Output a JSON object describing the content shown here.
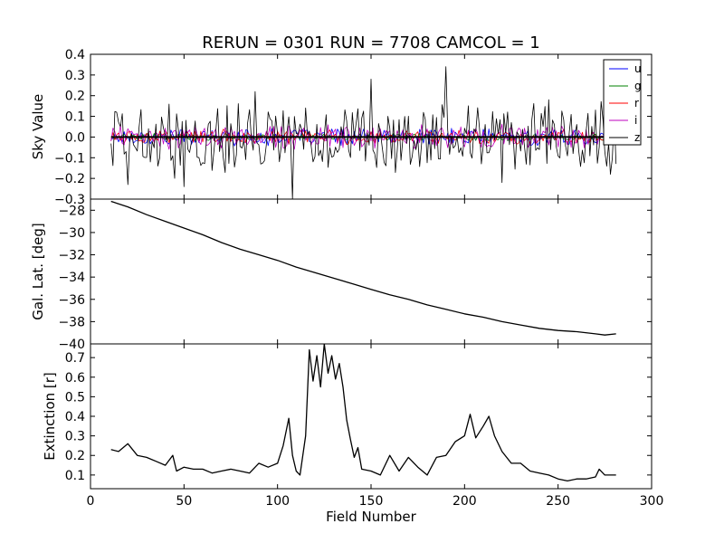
{
  "chart_data": {
    "type": "line",
    "title": "RERUN = 0301 RUN = 7708 CAMCOL = 1",
    "xlabel": "Field Number",
    "xlim": [
      0,
      300
    ],
    "xticks": [
      "0",
      "50",
      "100",
      "150",
      "200",
      "250",
      "300"
    ],
    "xtick_values": [
      0,
      50,
      100,
      150,
      200,
      250,
      300
    ],
    "panels": [
      {
        "id": "sky",
        "ylabel": "Sky Value",
        "ylim": [
          -0.3,
          0.4
        ],
        "yticks": [
          "−0.3",
          "−0.2",
          "−0.1",
          "0.0",
          "0.1",
          "0.2",
          "0.3",
          "0.4"
        ],
        "ytick_values": [
          -0.3,
          -0.2,
          -0.1,
          0.0,
          0.1,
          0.2,
          0.3,
          0.4
        ],
        "legend": {
          "placement": "top-right",
          "entries": [
            {
              "label": "u",
              "color": "#0000ff"
            },
            {
              "label": "g",
              "color": "#008000"
            },
            {
              "label": "r",
              "color": "#ff0000"
            },
            {
              "label": "i",
              "color": "#bf00bf"
            },
            {
              "label": "z",
              "color": "#000000"
            }
          ]
        },
        "series": [
          {
            "name": "u",
            "color": "#0000ff",
            "x_start": 11,
            "x_end": 281,
            "amplitude": 0.035
          },
          {
            "name": "g",
            "color": "#008000",
            "x_start": 11,
            "x_end": 281,
            "amplitude": 0.015
          },
          {
            "name": "r",
            "color": "#ff0000",
            "x_start": 11,
            "x_end": 281,
            "amplitude": 0.03
          },
          {
            "name": "i",
            "color": "#bf00bf",
            "x_start": 11,
            "x_end": 281,
            "amplitude": 0.05
          },
          {
            "name": "z",
            "color": "#000000",
            "x_start": 11,
            "x_end": 281,
            "amplitude": 0.14,
            "spikes": [
              [
                14,
                0.12
              ],
              [
                20,
                -0.23
              ],
              [
                45,
                -0.2
              ],
              [
                50,
                -0.24
              ],
              [
                88,
                0.22
              ],
              [
                108,
                -0.3
              ],
              [
                150,
                0.28
              ],
              [
                190,
                0.34
              ],
              [
                220,
                -0.22
              ],
              [
                278,
                -0.18
              ],
              [
                281,
                -0.13
              ]
            ]
          }
        ]
      },
      {
        "id": "lat",
        "ylabel": "Gal. Lat. [deg]",
        "ylim": [
          -40,
          -27
        ],
        "yticks": [
          "−28",
          "−30",
          "−32",
          "−34",
          "−36",
          "−38",
          "−40"
        ],
        "ytick_values": [
          -28,
          -30,
          -32,
          -34,
          -36,
          -38,
          -40
        ],
        "series": [
          {
            "name": "Gal. Lat.",
            "color": "#000000",
            "points": [
              [
                11,
                -27.2
              ],
              [
                20,
                -27.7
              ],
              [
                30,
                -28.4
              ],
              [
                40,
                -29.0
              ],
              [
                50,
                -29.6
              ],
              [
                60,
                -30.2
              ],
              [
                70,
                -30.9
              ],
              [
                80,
                -31.5
              ],
              [
                90,
                -32.0
              ],
              [
                100,
                -32.5
              ],
              [
                110,
                -33.1
              ],
              [
                120,
                -33.6
              ],
              [
                130,
                -34.1
              ],
              [
                140,
                -34.6
              ],
              [
                150,
                -35.1
              ],
              [
                160,
                -35.6
              ],
              [
                170,
                -36.0
              ],
              [
                180,
                -36.5
              ],
              [
                190,
                -36.9
              ],
              [
                200,
                -37.3
              ],
              [
                210,
                -37.6
              ],
              [
                220,
                -38.0
              ],
              [
                230,
                -38.3
              ],
              [
                240,
                -38.6
              ],
              [
                250,
                -38.8
              ],
              [
                260,
                -38.9
              ],
              [
                270,
                -39.1
              ],
              [
                275,
                -39.2
              ],
              [
                281,
                -39.1
              ]
            ]
          }
        ]
      },
      {
        "id": "ext",
        "ylabel": "Extinction [r]",
        "ylim": [
          0.03,
          0.77
        ],
        "yticks": [
          "0.1",
          "0.2",
          "0.3",
          "0.4",
          "0.5",
          "0.6",
          "0.7"
        ],
        "ytick_values": [
          0.1,
          0.2,
          0.3,
          0.4,
          0.5,
          0.6,
          0.7
        ],
        "series": [
          {
            "name": "Extinction [r]",
            "color": "#000000",
            "points": [
              [
                11,
                0.23
              ],
              [
                15,
                0.22
              ],
              [
                20,
                0.26
              ],
              [
                25,
                0.2
              ],
              [
                30,
                0.19
              ],
              [
                35,
                0.17
              ],
              [
                40,
                0.15
              ],
              [
                44,
                0.2
              ],
              [
                46,
                0.12
              ],
              [
                50,
                0.14
              ],
              [
                55,
                0.13
              ],
              [
                60,
                0.13
              ],
              [
                65,
                0.11
              ],
              [
                70,
                0.12
              ],
              [
                75,
                0.13
              ],
              [
                80,
                0.12
              ],
              [
                85,
                0.11
              ],
              [
                90,
                0.16
              ],
              [
                95,
                0.14
              ],
              [
                100,
                0.16
              ],
              [
                103,
                0.25
              ],
              [
                106,
                0.39
              ],
              [
                108,
                0.2
              ],
              [
                110,
                0.12
              ],
              [
                112,
                0.1
              ],
              [
                115,
                0.3
              ],
              [
                117,
                0.74
              ],
              [
                119,
                0.58
              ],
              [
                121,
                0.71
              ],
              [
                123,
                0.55
              ],
              [
                125,
                0.77
              ],
              [
                127,
                0.62
              ],
              [
                129,
                0.71
              ],
              [
                131,
                0.59
              ],
              [
                133,
                0.67
              ],
              [
                135,
                0.55
              ],
              [
                137,
                0.38
              ],
              [
                139,
                0.28
              ],
              [
                141,
                0.19
              ],
              [
                143,
                0.24
              ],
              [
                145,
                0.13
              ],
              [
                150,
                0.12
              ],
              [
                155,
                0.1
              ],
              [
                160,
                0.2
              ],
              [
                165,
                0.12
              ],
              [
                170,
                0.19
              ],
              [
                175,
                0.14
              ],
              [
                180,
                0.1
              ],
              [
                185,
                0.19
              ],
              [
                190,
                0.2
              ],
              [
                195,
                0.27
              ],
              [
                200,
                0.3
              ],
              [
                203,
                0.41
              ],
              [
                206,
                0.29
              ],
              [
                210,
                0.35
              ],
              [
                213,
                0.4
              ],
              [
                216,
                0.3
              ],
              [
                220,
                0.22
              ],
              [
                225,
                0.16
              ],
              [
                230,
                0.16
              ],
              [
                235,
                0.12
              ],
              [
                240,
                0.11
              ],
              [
                245,
                0.1
              ],
              [
                250,
                0.08
              ],
              [
                255,
                0.07
              ],
              [
                260,
                0.08
              ],
              [
                265,
                0.08
              ],
              [
                270,
                0.09
              ],
              [
                272,
                0.13
              ],
              [
                275,
                0.1
              ],
              [
                281,
                0.1
              ]
            ]
          }
        ]
      }
    ]
  }
}
